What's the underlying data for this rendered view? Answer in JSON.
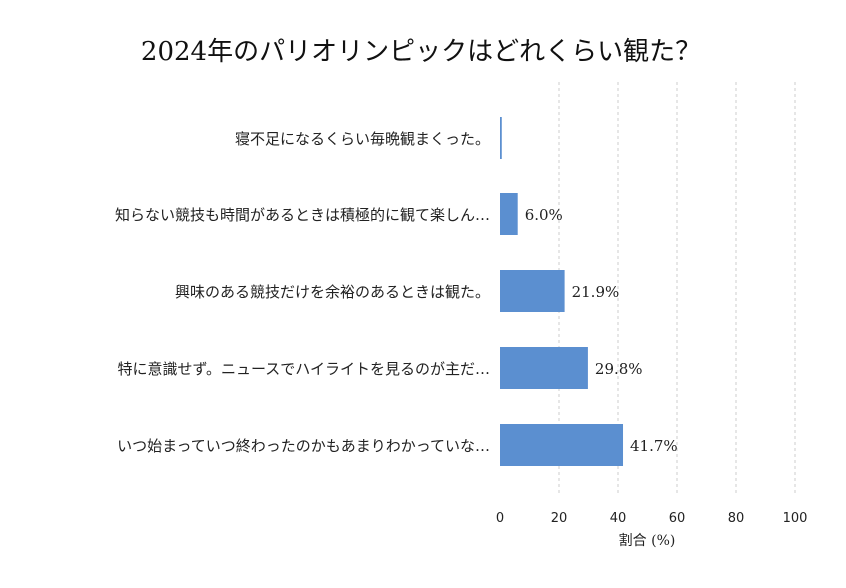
{
  "chart_data": {
    "type": "bar",
    "orientation": "horizontal",
    "title": "2024年のパリオリンピックはどれくらい観た？",
    "xlabel": "割合 (%)",
    "ylabel": "",
    "xlim": [
      0,
      100
    ],
    "xticks": [
      0,
      20,
      40,
      60,
      80,
      100
    ],
    "grid": "x-dashed",
    "bar_color": "#5b8fd0",
    "categories": [
      "寝不足になるくらい毎晩観まくった。",
      "知らない競技も時間があるときは積極的に観て楽しん…",
      "興味のある競技だけを余裕のあるときは観た。",
      "特に意識せず。ニュースでハイライトを見るのが主だ…",
      "いつ始まっていつ終わったのかもあまりわかっていな…"
    ],
    "values": [
      0.6,
      6.0,
      21.9,
      29.8,
      41.7
    ],
    "data_labels": [
      "",
      "6.0%",
      "21.9%",
      "29.8%",
      "41.7%"
    ]
  }
}
